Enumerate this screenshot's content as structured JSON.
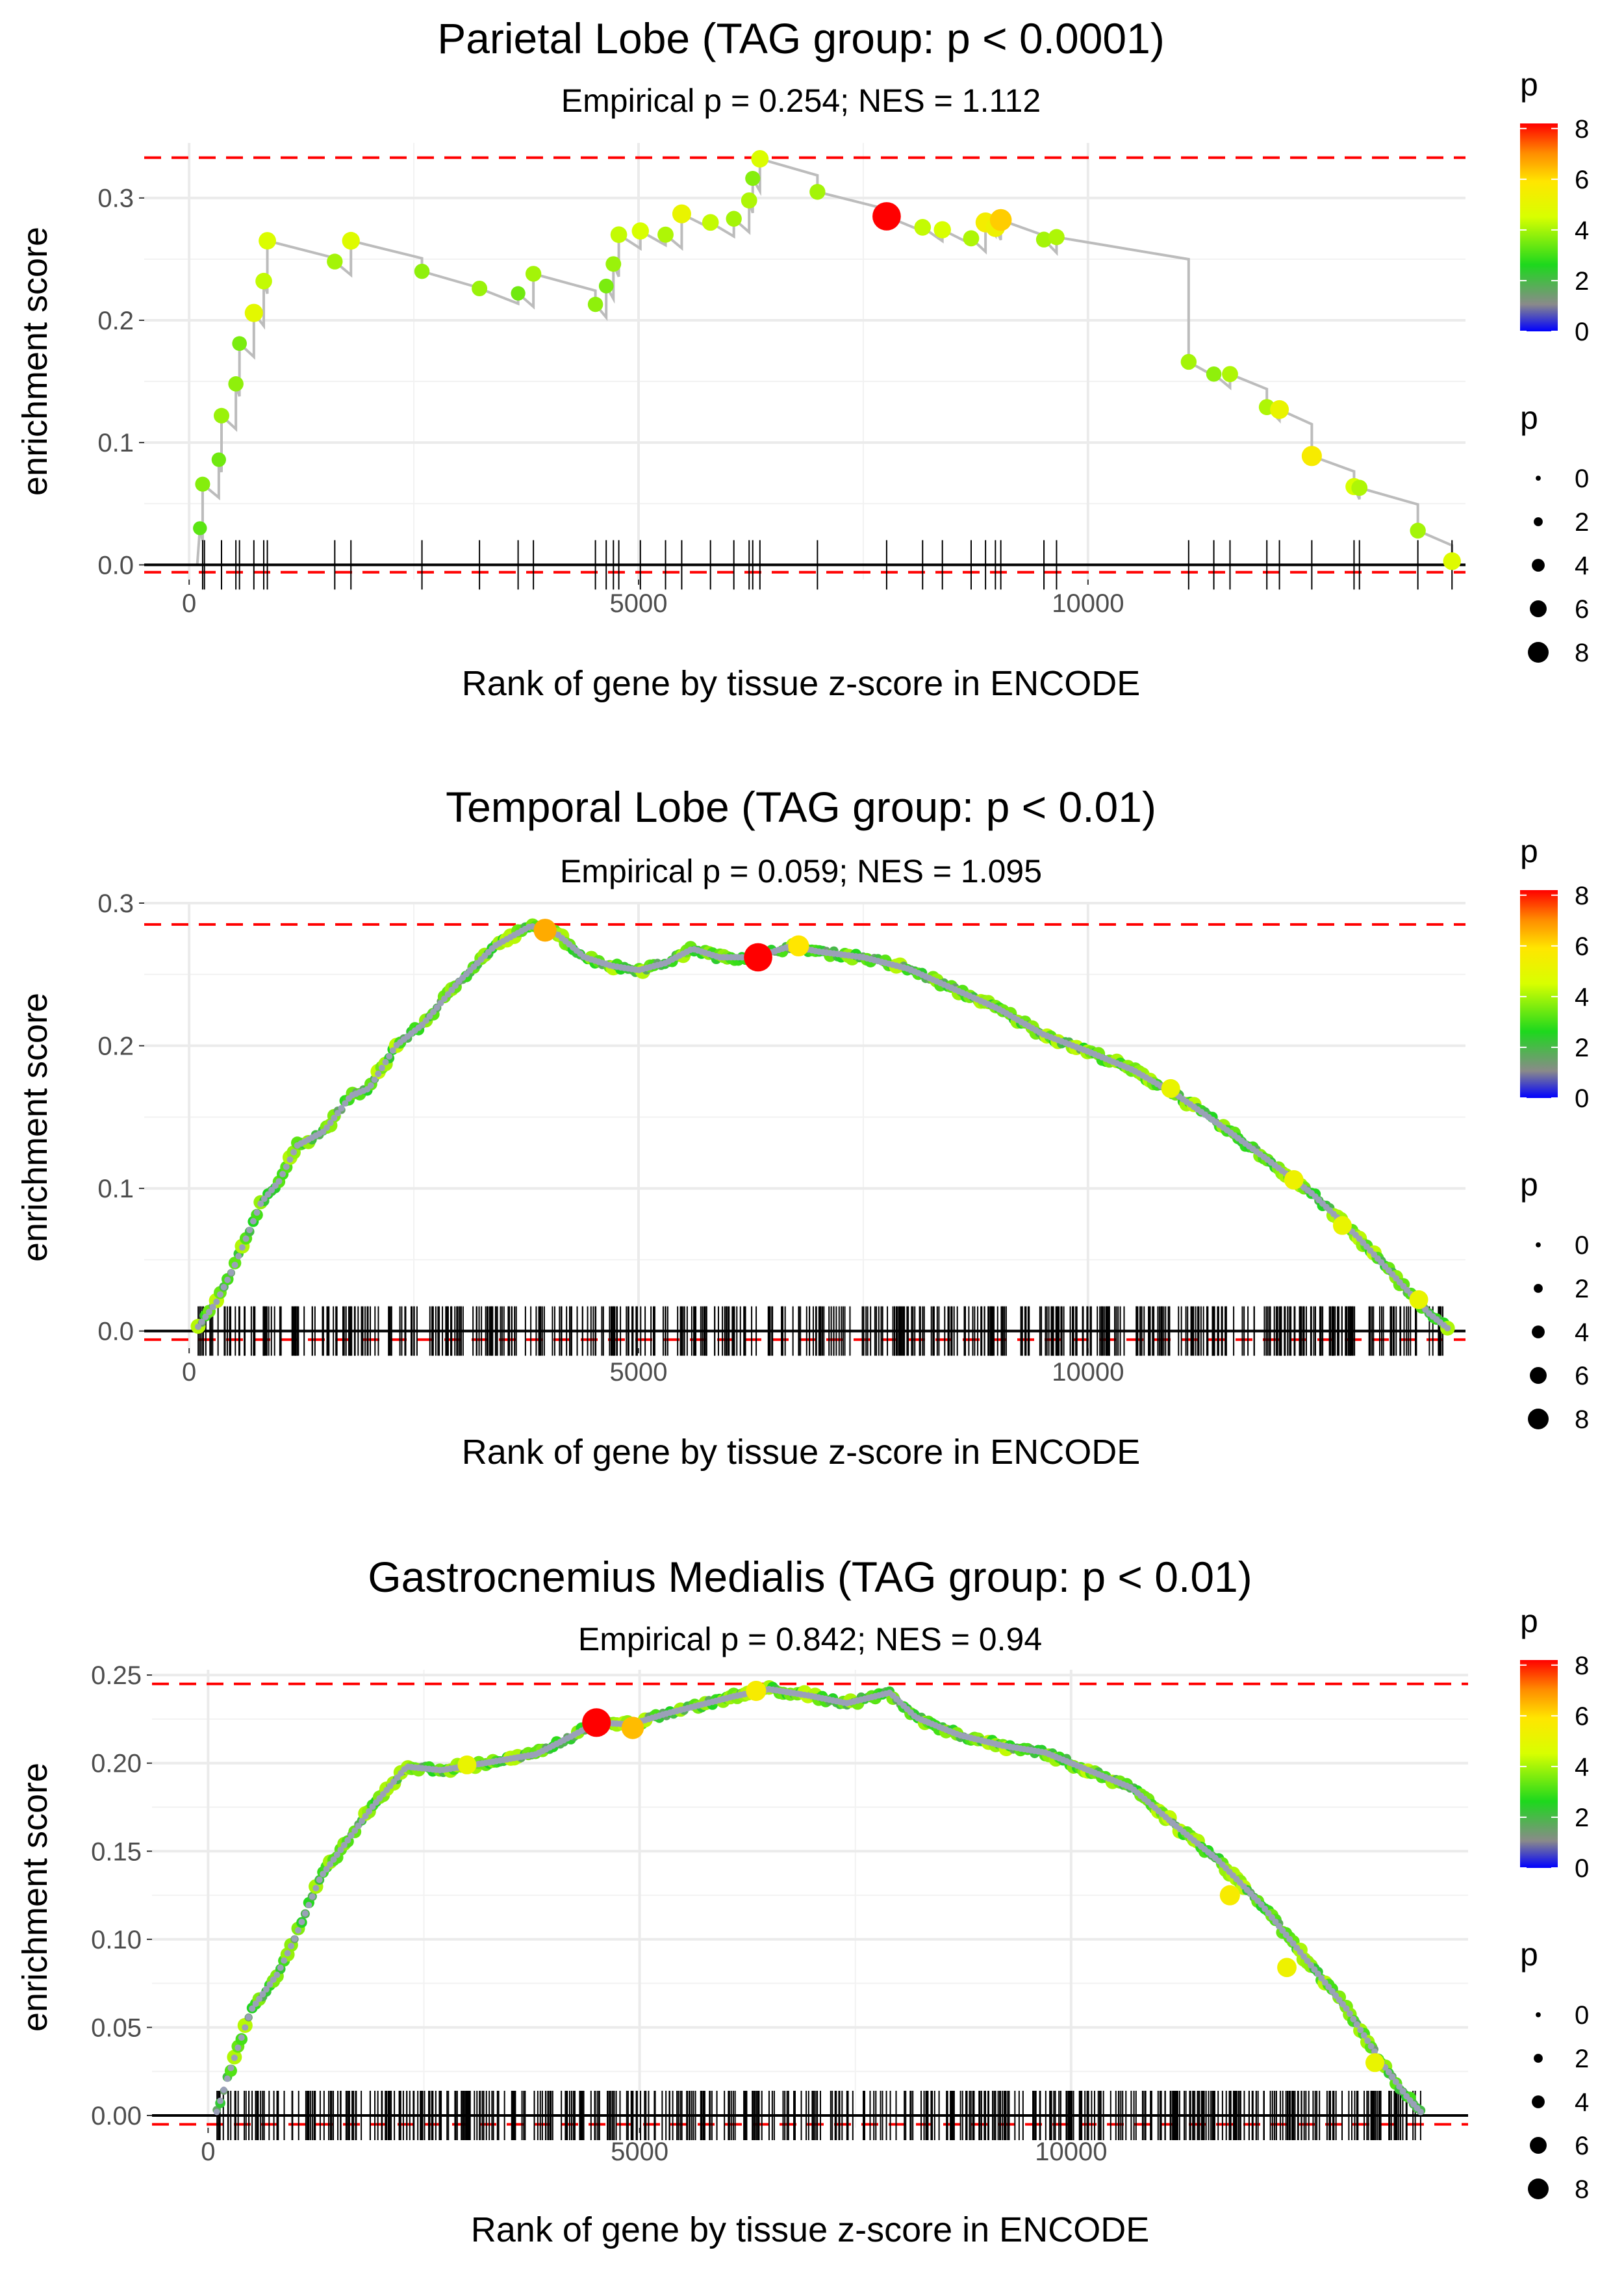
{
  "legend": {
    "color_title": "p",
    "size_title": "p",
    "color_ticks": [
      "0",
      "2",
      "4",
      "6",
      "8"
    ],
    "size_ticks": [
      "0",
      "2",
      "4",
      "6",
      "8"
    ]
  },
  "chart_data": [
    {
      "type": "scatter",
      "title": "Parietal Lobe (TAG group: p < 0.0001)",
      "subtitle": "Empirical p = 0.254; NES = 1.112",
      "xlabel": "Rank of gene by tissue z-score in ENCODE",
      "ylabel": "enrichment score",
      "xlim": [
        -500,
        14200
      ],
      "ylim": [
        -0.012,
        0.345
      ],
      "x_ticks": [
        0,
        5000,
        10000
      ],
      "x_tick_labels": [
        "0",
        "5000",
        "10000"
      ],
      "y_ticks": [
        0,
        0.1,
        0.2,
        0.3
      ],
      "y_tick_labels": [
        "0.0",
        "0.1",
        "0.2",
        "0.3"
      ],
      "hline_max": 0.333,
      "hline_min": -0.006,
      "mode": "sparse",
      "points": [
        [
          120,
          0.03,
          3.2
        ],
        [
          150,
          0.066,
          3.6
        ],
        [
          330,
          0.086,
          3.4
        ],
        [
          360,
          0.122,
          3.8
        ],
        [
          520,
          0.148,
          3.7
        ],
        [
          560,
          0.181,
          3.5
        ],
        [
          720,
          0.206,
          4.8
        ],
        [
          830,
          0.232,
          4.2
        ],
        [
          870,
          0.265,
          4.5
        ],
        [
          1620,
          0.248,
          3.9
        ],
        [
          1800,
          0.265,
          4.6
        ],
        [
          2590,
          0.24,
          3.7
        ],
        [
          3230,
          0.226,
          3.8
        ],
        [
          3660,
          0.222,
          3.4
        ],
        [
          3830,
          0.238,
          3.9
        ],
        [
          4520,
          0.213,
          3.7
        ],
        [
          4640,
          0.228,
          3.5
        ],
        [
          4720,
          0.246,
          3.8
        ],
        [
          4780,
          0.27,
          4.2
        ],
        [
          5020,
          0.273,
          4.4
        ],
        [
          5300,
          0.27,
          4.0
        ],
        [
          5480,
          0.287,
          5.0
        ],
        [
          5800,
          0.28,
          4.2
        ],
        [
          6060,
          0.283,
          3.9
        ],
        [
          6230,
          0.298,
          4.0
        ],
        [
          6270,
          0.316,
          3.6
        ],
        [
          6350,
          0.332,
          4.5
        ],
        [
          6990,
          0.305,
          3.9
        ],
        [
          7760,
          0.285,
          8.5
        ],
        [
          8160,
          0.276,
          4.2
        ],
        [
          8380,
          0.274,
          4.4
        ],
        [
          8700,
          0.267,
          4.0
        ],
        [
          8860,
          0.28,
          5.4
        ],
        [
          8970,
          0.276,
          5.2
        ],
        [
          9030,
          0.282,
          6.1
        ],
        [
          9510,
          0.266,
          3.9
        ],
        [
          9650,
          0.268,
          4.0
        ],
        [
          11120,
          0.166,
          3.9
        ],
        [
          11400,
          0.156,
          3.7
        ],
        [
          11580,
          0.156,
          4.0
        ],
        [
          11990,
          0.129,
          4.0
        ],
        [
          12130,
          0.127,
          5.0
        ],
        [
          12490,
          0.089,
          5.5
        ],
        [
          12960,
          0.064,
          4.4
        ],
        [
          13020,
          0.063,
          4.0
        ],
        [
          13670,
          0.028,
          3.9
        ],
        [
          14050,
          0.003,
          4.6
        ]
      ],
      "rug": [
        150,
        170,
        360,
        520,
        560,
        720,
        830,
        870,
        1620,
        1800,
        2590,
        3230,
        3660,
        3830,
        4520,
        4640,
        4720,
        4780,
        5020,
        5300,
        5480,
        5800,
        6060,
        6230,
        6270,
        6350,
        6990,
        7760,
        8160,
        8380,
        8700,
        8860,
        8970,
        9030,
        9510,
        9650,
        11120,
        11400,
        11580,
        11990,
        12130,
        12490,
        12960,
        13020,
        13670,
        14050
      ]
    },
    {
      "type": "scatter",
      "title": "Temporal Lobe (TAG group: p < 0.01)",
      "subtitle": "Empirical p = 0.059; NES = 1.095",
      "xlabel": "Rank of gene by tissue z-score in ENCODE",
      "ylabel": "enrichment score",
      "xlim": [
        -500,
        14200
      ],
      "ylim": [
        -0.012,
        0.3
      ],
      "x_ticks": [
        0,
        5000,
        10000
      ],
      "x_tick_labels": [
        "0",
        "5000",
        "10000"
      ],
      "y_ticks": [
        0,
        0.1,
        0.2,
        0.3
      ],
      "y_tick_labels": [
        "0.0",
        "0.1",
        "0.2",
        "0.3"
      ],
      "hline_max": 0.285,
      "hline_min": -0.006,
      "mode": "dense",
      "curve": [
        [
          100,
          0.003
        ],
        [
          300,
          0.02
        ],
        [
          500,
          0.045
        ],
        [
          800,
          0.09
        ],
        [
          1000,
          0.105
        ],
        [
          1200,
          0.13
        ],
        [
          1500,
          0.14
        ],
        [
          1800,
          0.165
        ],
        [
          2000,
          0.17
        ],
        [
          2300,
          0.2
        ],
        [
          2600,
          0.215
        ],
        [
          3000,
          0.245
        ],
        [
          3400,
          0.27
        ],
        [
          3800,
          0.284
        ],
        [
          4100,
          0.278
        ],
        [
          4400,
          0.262
        ],
        [
          4700,
          0.256
        ],
        [
          5000,
          0.253
        ],
        [
          5300,
          0.258
        ],
        [
          5600,
          0.268
        ],
        [
          5900,
          0.262
        ],
        [
          6300,
          0.262
        ],
        [
          6700,
          0.27
        ],
        [
          7000,
          0.266
        ],
        [
          7500,
          0.262
        ],
        [
          8000,
          0.254
        ],
        [
          8500,
          0.24
        ],
        [
          9000,
          0.226
        ],
        [
          9500,
          0.208
        ],
        [
          10000,
          0.196
        ],
        [
          10500,
          0.183
        ],
        [
          11000,
          0.165
        ],
        [
          11500,
          0.143
        ],
        [
          12000,
          0.12
        ],
        [
          12500,
          0.096
        ],
        [
          13000,
          0.066
        ],
        [
          13500,
          0.032
        ],
        [
          13800,
          0.012
        ],
        [
          14000,
          0.002
        ]
      ],
      "highlights": [
        [
          6330,
          0.262,
          8.5
        ],
        [
          3960,
          0.281,
          6.5
        ],
        [
          6780,
          0.27,
          5.8
        ],
        [
          10920,
          0.17,
          5.0
        ],
        [
          12290,
          0.106,
          5.2
        ],
        [
          12830,
          0.074,
          5.0
        ],
        [
          13680,
          0.022,
          5.0
        ]
      ],
      "rug_range": [
        100,
        14000
      ],
      "rug_count": 560
    },
    {
      "type": "scatter",
      "title": "Gastrocnemius Medialis (TAG group: p < 0.01)",
      "subtitle": "Empirical p = 0.842; NES = 0.94",
      "xlabel": "Rank of gene by tissue z-score in ENCODE",
      "ylabel": "enrichment score",
      "xlim": [
        -650,
        14600
      ],
      "ylim": [
        -0.007,
        0.253
      ],
      "x_ticks": [
        0,
        5000,
        10000
      ],
      "x_tick_labels": [
        "0",
        "5000",
        "10000"
      ],
      "y_ticks": [
        0,
        0.05,
        0.1,
        0.15,
        0.2,
        0.25
      ],
      "y_tick_labels": [
        "0.00",
        "0.05",
        "0.10",
        "0.15",
        "0.20",
        "0.25"
      ],
      "hline_max": 0.245,
      "hline_min": -0.005,
      "mode": "dense",
      "curve": [
        [
          100,
          0.002
        ],
        [
          250,
          0.025
        ],
        [
          500,
          0.06
        ],
        [
          800,
          0.08
        ],
        [
          1000,
          0.1
        ],
        [
          1300,
          0.135
        ],
        [
          1600,
          0.155
        ],
        [
          1900,
          0.175
        ],
        [
          2300,
          0.198
        ],
        [
          2700,
          0.196
        ],
        [
          3200,
          0.2
        ],
        [
          3800,
          0.205
        ],
        [
          4200,
          0.215
        ],
        [
          4500,
          0.223
        ],
        [
          4900,
          0.222
        ],
        [
          5300,
          0.228
        ],
        [
          5700,
          0.233
        ],
        [
          6100,
          0.238
        ],
        [
          6500,
          0.242
        ],
        [
          7000,
          0.238
        ],
        [
          7400,
          0.234
        ],
        [
          7900,
          0.24
        ],
        [
          8200,
          0.226
        ],
        [
          8700,
          0.216
        ],
        [
          9200,
          0.21
        ],
        [
          9700,
          0.206
        ],
        [
          10200,
          0.196
        ],
        [
          10700,
          0.186
        ],
        [
          11200,
          0.165
        ],
        [
          11700,
          0.145
        ],
        [
          12200,
          0.12
        ],
        [
          12700,
          0.09
        ],
        [
          13200,
          0.06
        ],
        [
          13600,
          0.03
        ],
        [
          13900,
          0.01
        ],
        [
          14050,
          0.002
        ]
      ],
      "highlights": [
        [
          4500,
          0.223,
          8.6
        ],
        [
          4920,
          0.22,
          6.3
        ],
        [
          6350,
          0.241,
          5.5
        ],
        [
          3000,
          0.199,
          5.0
        ],
        [
          11840,
          0.125,
          5.5
        ],
        [
          12500,
          0.084,
          5.2
        ],
        [
          13520,
          0.03,
          5.0
        ]
      ],
      "rug_range": [
        100,
        14050
      ],
      "rug_count": 540
    }
  ]
}
